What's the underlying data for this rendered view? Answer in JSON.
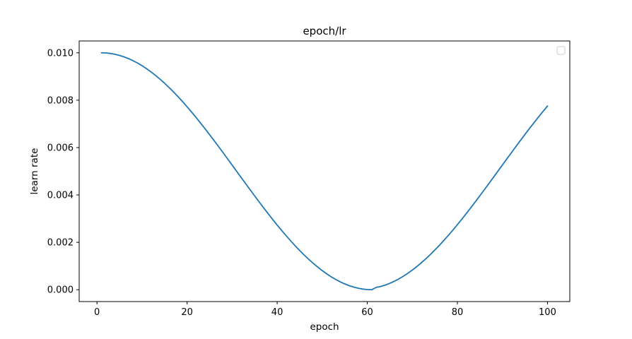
{
  "chart_data": {
    "type": "line",
    "title": "epoch/lr",
    "xlabel": "epoch",
    "ylabel": "learn rate",
    "xlim": [
      -3.95,
      104.95
    ],
    "ylim": [
      -0.0005,
      0.0105
    ],
    "xticks": [
      {
        "value": 0,
        "label": "0"
      },
      {
        "value": 20,
        "label": "20"
      },
      {
        "value": 40,
        "label": "40"
      },
      {
        "value": 60,
        "label": "60"
      },
      {
        "value": 80,
        "label": "80"
      },
      {
        "value": 100,
        "label": "100"
      }
    ],
    "yticks": [
      {
        "value": 0.0,
        "label": "0.000"
      },
      {
        "value": 0.002,
        "label": "0.002"
      },
      {
        "value": 0.004,
        "label": "0.004"
      },
      {
        "value": 0.006,
        "label": "0.006"
      },
      {
        "value": 0.008,
        "label": "0.008"
      },
      {
        "value": 0.01,
        "label": "0.010"
      }
    ],
    "grid": false,
    "legend": "upper right (empty)",
    "colors": {
      "line": "#1f77b4",
      "axes": "#000000"
    },
    "series": [
      {
        "x": [
          1,
          2,
          3,
          4,
          5,
          6,
          7,
          8,
          9,
          10,
          11,
          12,
          13,
          14,
          15,
          16,
          17,
          18,
          19,
          20,
          21,
          22,
          23,
          24,
          25,
          26,
          27,
          28,
          29,
          30,
          31,
          32,
          33,
          34,
          35,
          36,
          37,
          38,
          39,
          40,
          41,
          42,
          43,
          44,
          45,
          46,
          47,
          48,
          49,
          50,
          51,
          52,
          53,
          54,
          55,
          56,
          57,
          58,
          59,
          60,
          61,
          62,
          63,
          64,
          65,
          66,
          67,
          68,
          69,
          70,
          71,
          72,
          73,
          74,
          75,
          76,
          77,
          78,
          79,
          80,
          81,
          82,
          83,
          84,
          85,
          86,
          87,
          88,
          89,
          90,
          91,
          92,
          93,
          94,
          95,
          96,
          97,
          98,
          99,
          100
        ],
        "values": [
          0.01,
          0.009993,
          0.009973,
          0.009938,
          0.00989,
          0.009829,
          0.009755,
          0.009668,
          0.009568,
          0.009455,
          0.00933,
          0.009193,
          0.009045,
          0.008886,
          0.008716,
          0.008536,
          0.008346,
          0.008147,
          0.007939,
          0.007723,
          0.0075,
          0.00727,
          0.007033,
          0.006791,
          0.006545,
          0.006294,
          0.006039,
          0.005782,
          0.005522,
          0.005262,
          0.005,
          0.004738,
          0.004478,
          0.004218,
          0.003961,
          0.003706,
          0.003455,
          0.003209,
          0.002967,
          0.00273,
          0.0025,
          0.002277,
          0.002061,
          0.001853,
          0.001654,
          0.001464,
          0.001284,
          0.001114,
          0.000955,
          0.000807,
          0.00067,
          0.000545,
          0.000432,
          0.000332,
          0.000245,
          0.000171,
          0.00011,
          6.2e-05,
          2.7e-05,
          7e-06,
          0.0,
          0.0001,
          0.000137,
          0.000197,
          0.00027,
          0.000357,
          0.000457,
          0.000569,
          0.000694,
          0.000831,
          0.000979,
          0.001138,
          0.001307,
          0.001487,
          0.001676,
          0.001874,
          0.002081,
          0.002296,
          0.002517,
          0.002746,
          0.002981,
          0.003221,
          0.003467,
          0.003716,
          0.003969,
          0.004225,
          0.004484,
          0.004744,
          0.005005,
          0.005266,
          0.005527,
          0.005787,
          0.006046,
          0.006302,
          0.006555,
          0.006804,
          0.007049,
          0.00729,
          0.007525,
          0.007754
        ]
      }
    ]
  }
}
